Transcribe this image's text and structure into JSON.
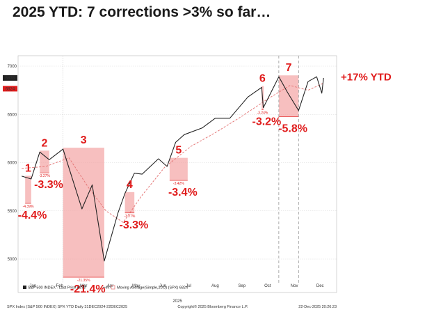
{
  "title": "2025 YTD: 7 corrections >3% so far…",
  "chart_data": {
    "type": "line",
    "series": [
      {
        "name": "S&P 500 INDEX - Last Price 6878",
        "x": [
          "2025-01-02",
          "2025-01-13",
          "2025-01-23",
          "2025-02-03",
          "2025-02-19",
          "2025-03-13",
          "2025-03-25",
          "2025-04-08",
          "2025-04-24",
          "2025-05-02",
          "2025-05-13",
          "2025-05-22",
          "2025-06-10",
          "2025-06-20",
          "2025-06-30",
          "2025-07-10",
          "2025-07-31",
          "2025-08-15",
          "2025-09-01",
          "2025-09-22",
          "2025-10-08",
          "2025-10-10",
          "2025-10-28",
          "2025-11-07",
          "2025-11-20",
          "2025-12-01",
          "2025-12-11",
          "2025-12-17",
          "2025-12-19"
        ],
        "values": [
          5860,
          5830,
          6110,
          6030,
          6140,
          5520,
          5770,
          4980,
          5480,
          5680,
          5890,
          5880,
          6040,
          5960,
          6210,
          6290,
          6360,
          6460,
          6460,
          6680,
          6780,
          6570,
          6890,
          6730,
          6540,
          6840,
          6890,
          6720,
          6878
        ]
      },
      {
        "name": "Moving Average(Simple,20,0) (SPX) 6824",
        "x": [
          "2025-01-02",
          "2025-01-30",
          "2025-02-26",
          "2025-03-20",
          "2025-04-10",
          "2025-04-30",
          "2025-05-21",
          "2025-06-17",
          "2025-07-18",
          "2025-08-15",
          "2025-09-15",
          "2025-10-15",
          "2025-11-10",
          "2025-12-01",
          "2025-12-19"
        ],
        "values": [
          5940,
          5960,
          6050,
          5750,
          5500,
          5380,
          5650,
          5950,
          6170,
          6310,
          6480,
          6660,
          6800,
          6750,
          6824
        ]
      }
    ],
    "ylim": [
      4800,
      7000
    ],
    "y_ticks": [
      "7000",
      "6500",
      "6000",
      "5500",
      "5000"
    ],
    "x_ticks": [
      "Jan",
      "Feb",
      "Mar",
      "Apr",
      "May",
      "Jun",
      "Jul",
      "Aug",
      "Sep",
      "Oct",
      "Nov",
      "Dec"
    ],
    "x_axis_label": "2025",
    "last_price_label": "6878",
    "ma_label": "6824",
    "corrections": [
      {
        "number": "1",
        "start": "2025-01-06",
        "end": "2025-01-13",
        "drawdown": "-4.4%",
        "small_label": "-4.39%"
      },
      {
        "number": "2",
        "start": "2025-01-23",
        "end": "2025-02-03",
        "drawdown": "-3.3%",
        "small_label": "-3.27%"
      },
      {
        "number": "3",
        "start": "2025-02-19",
        "end": "2025-04-08",
        "drawdown": "-21.4%",
        "small_label": "-21.35%"
      },
      {
        "number": "4",
        "start": "2025-05-02",
        "end": "2025-05-13",
        "drawdown": "-3.3%",
        "small_label": "-3.27%"
      },
      {
        "number": "5",
        "start": "2025-06-23",
        "end": "2025-07-14",
        "drawdown": "-3.4%",
        "small_label": "-3.42%"
      },
      {
        "number": "6",
        "start": "2025-10-08",
        "end": "2025-10-10",
        "drawdown": "-3.2%",
        "small_label": "-3.24%"
      },
      {
        "number": "7",
        "start": "2025-10-28",
        "end": "2025-11-20",
        "drawdown": "-5.8%",
        "small_label": ""
      }
    ],
    "annotation": "+17% YTD",
    "legend": {
      "price": "S&P 500 INDEX - Last Price 6878",
      "change": "+44",
      "ma": "Moving Average(Simple,20,0) (SPX) 6824"
    },
    "footer": {
      "left": "SPX Index (S&P 500 INDEX) SPX YTD Daily 31DEC2024-22DEC2025",
      "center": "Copyright© 2025 Bloomberg Finance L.P.",
      "right": "22-Dec-2025 20:26:23"
    },
    "colors": {
      "price": "#222222",
      "ma": "#e57a7a",
      "highlight": "#f4a9a9",
      "label": "#e01b1b",
      "grid": "#d9d9d9"
    }
  }
}
